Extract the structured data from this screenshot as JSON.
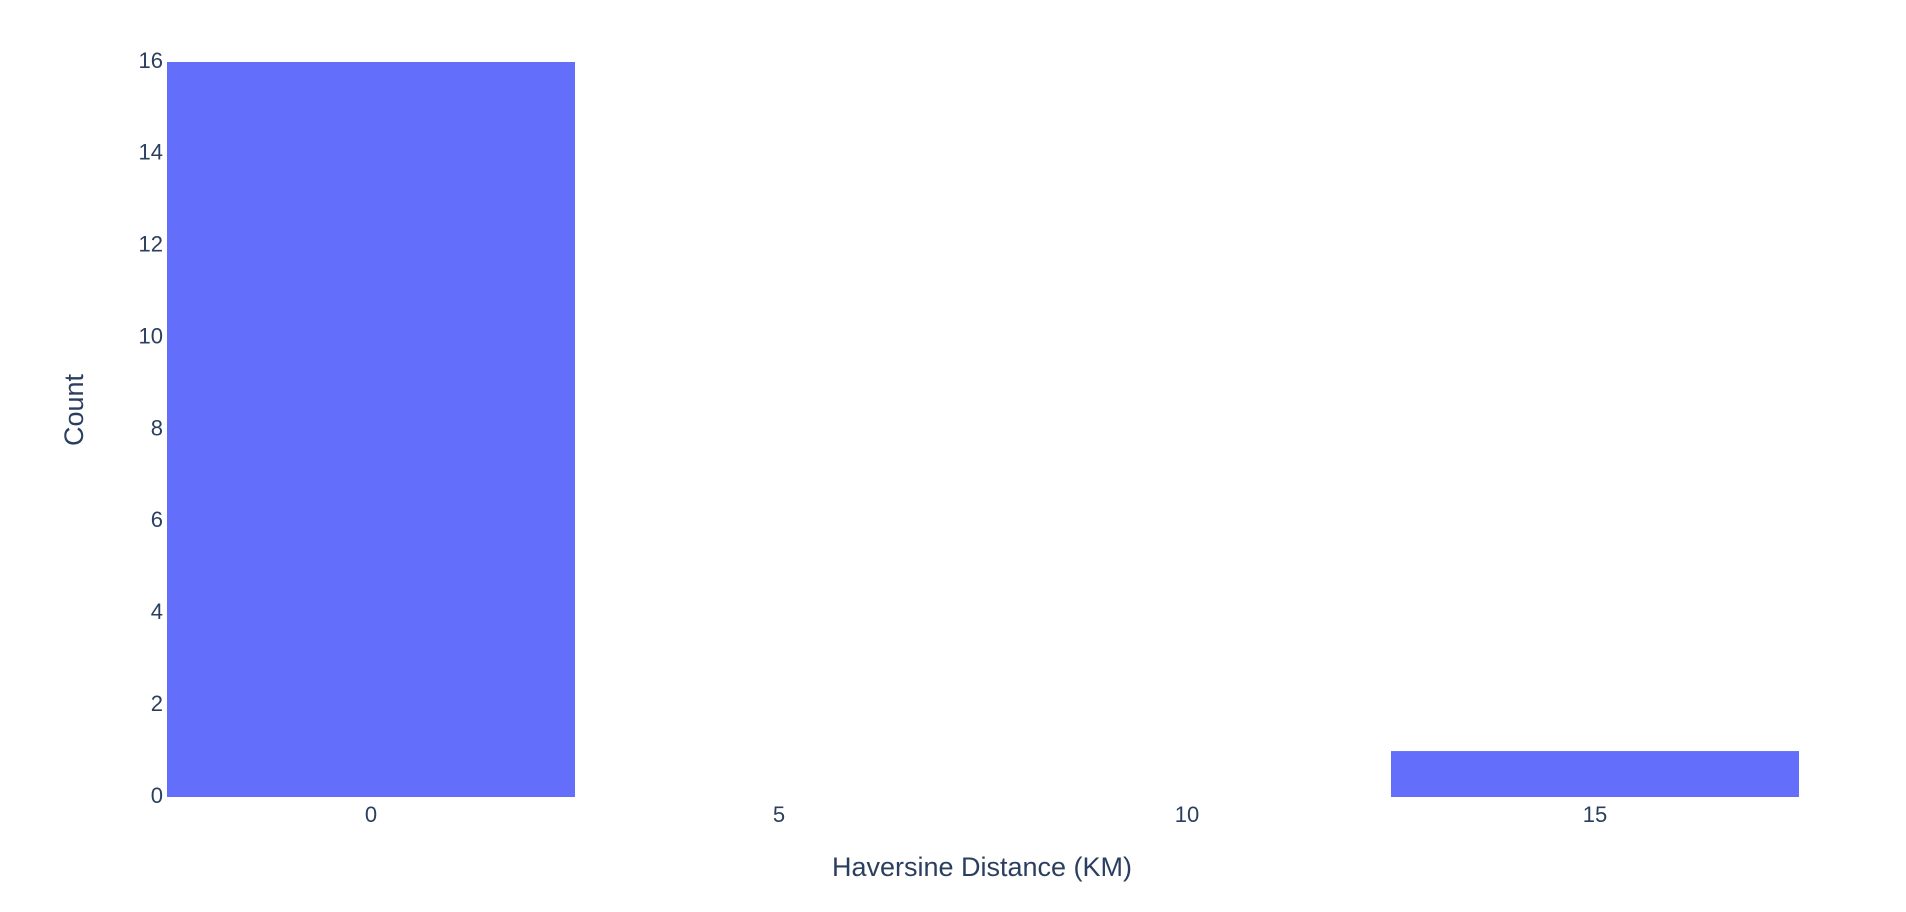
{
  "chart_data": {
    "type": "histogram",
    "x_label": "Haversine Distance (KM)",
    "y_label": "Count",
    "bins": [
      -2.5,
      2.5,
      7.5,
      12.5,
      17.5
    ],
    "values": [
      16,
      0,
      0,
      1
    ],
    "color": "#636efa",
    "xlim": [
      -2.5,
      17.5
    ],
    "xticks": [
      0,
      5,
      10,
      15
    ],
    "ylim": [
      0,
      16
    ],
    "yticks": [
      0,
      2,
      4,
      6,
      8,
      10,
      12,
      14,
      16
    ],
    "grid": false
  }
}
